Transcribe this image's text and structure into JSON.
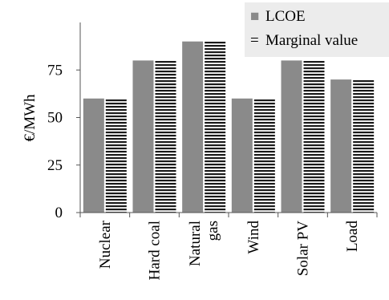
{
  "chart_data": {
    "type": "bar",
    "categories": [
      "Nuclear",
      "Hard coal",
      "Natural gas",
      "Wind",
      "Solar PV",
      "Load"
    ],
    "category_lines": [
      [
        "Nuclear"
      ],
      [
        "Hard coal"
      ],
      [
        "Natural",
        "gas"
      ],
      [
        "Wind"
      ],
      [
        "Solar PV"
      ],
      [
        "Load"
      ]
    ],
    "series": [
      {
        "name": "LCOE",
        "values": [
          60,
          80,
          90,
          60,
          80,
          70
        ],
        "color": "#8a8a8a",
        "style": "solid"
      },
      {
        "name": "Marginal value",
        "values": [
          60,
          80,
          90,
          60,
          80,
          70
        ],
        "color": "#1a1a1a",
        "style": "horizontal-stripes"
      }
    ],
    "ylabel": "€/MWh",
    "xlabel": "",
    "title": "",
    "ylim": [
      0,
      100
    ],
    "yticks": [
      0,
      25,
      50,
      75
    ],
    "grid": false,
    "legend_placement": "top-right",
    "legend_symbols": [
      "■",
      "="
    ],
    "legend_background": "#ececec"
  }
}
